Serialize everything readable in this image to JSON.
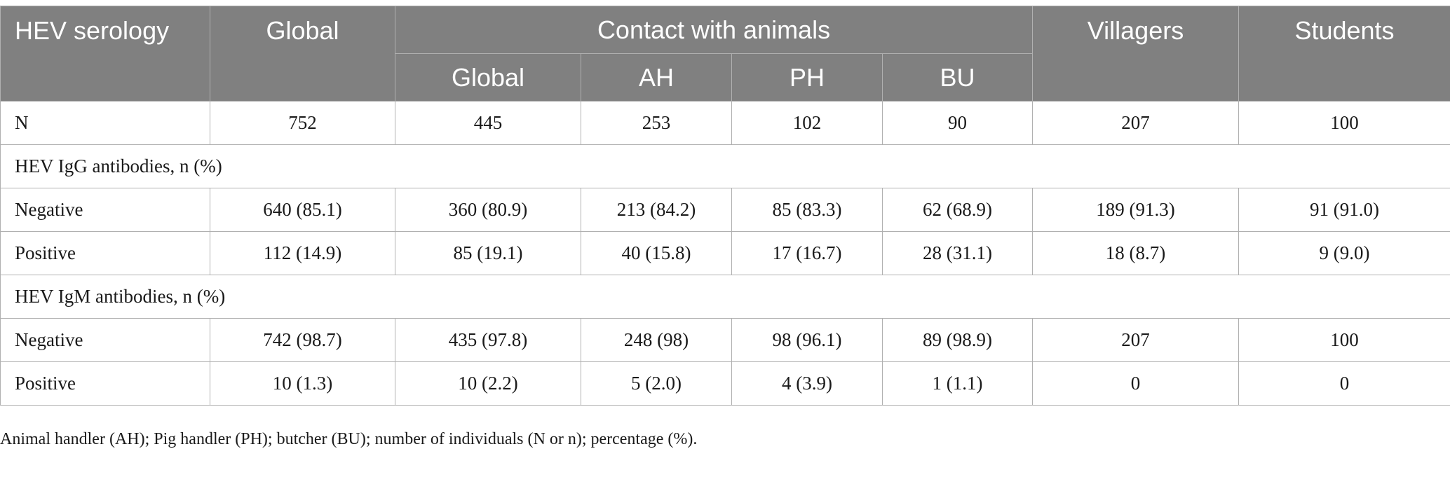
{
  "table": {
    "header": {
      "row_label": "HEV serology",
      "global": "Global",
      "contact_group": "Contact with animals",
      "contact_sub": [
        "Global",
        "AH",
        "PH",
        "BU"
      ],
      "villagers": "Villagers",
      "students": "Students"
    },
    "n_row": {
      "label": "N",
      "cells": [
        "752",
        "445",
        "253",
        "102",
        "90",
        "207",
        "100"
      ]
    },
    "igg": {
      "title": "HEV IgG antibodies, n (%)",
      "negative": {
        "label": "Negative",
        "cells": [
          "640 (85.1)",
          "360 (80.9)",
          "213 (84.2)",
          "85 (83.3)",
          "62 (68.9)",
          "189 (91.3)",
          "91 (91.0)"
        ]
      },
      "positive": {
        "label": "Positive",
        "cells": [
          "112 (14.9)",
          "85 (19.1)",
          "40 (15.8)",
          "17 (16.7)",
          "28 (31.1)",
          "18 (8.7)",
          "9 (9.0)"
        ]
      }
    },
    "igm": {
      "title": "HEV IgM antibodies, n (%)",
      "negative": {
        "label": "Negative",
        "cells": [
          "742 (98.7)",
          "435 (97.8)",
          "248 (98)",
          "98 (96.1)",
          "89 (98.9)",
          "207",
          "100"
        ]
      },
      "positive": {
        "label": "Positive",
        "cells": [
          "10 (1.3)",
          "10 (2.2)",
          "5 (2.0)",
          "4 (3.9)",
          "1 (1.1)",
          "0",
          "0"
        ]
      }
    }
  },
  "footnote": "Animal handler (AH); Pig handler (PH); butcher (BU); number of individuals (N or n); percentage (%)."
}
